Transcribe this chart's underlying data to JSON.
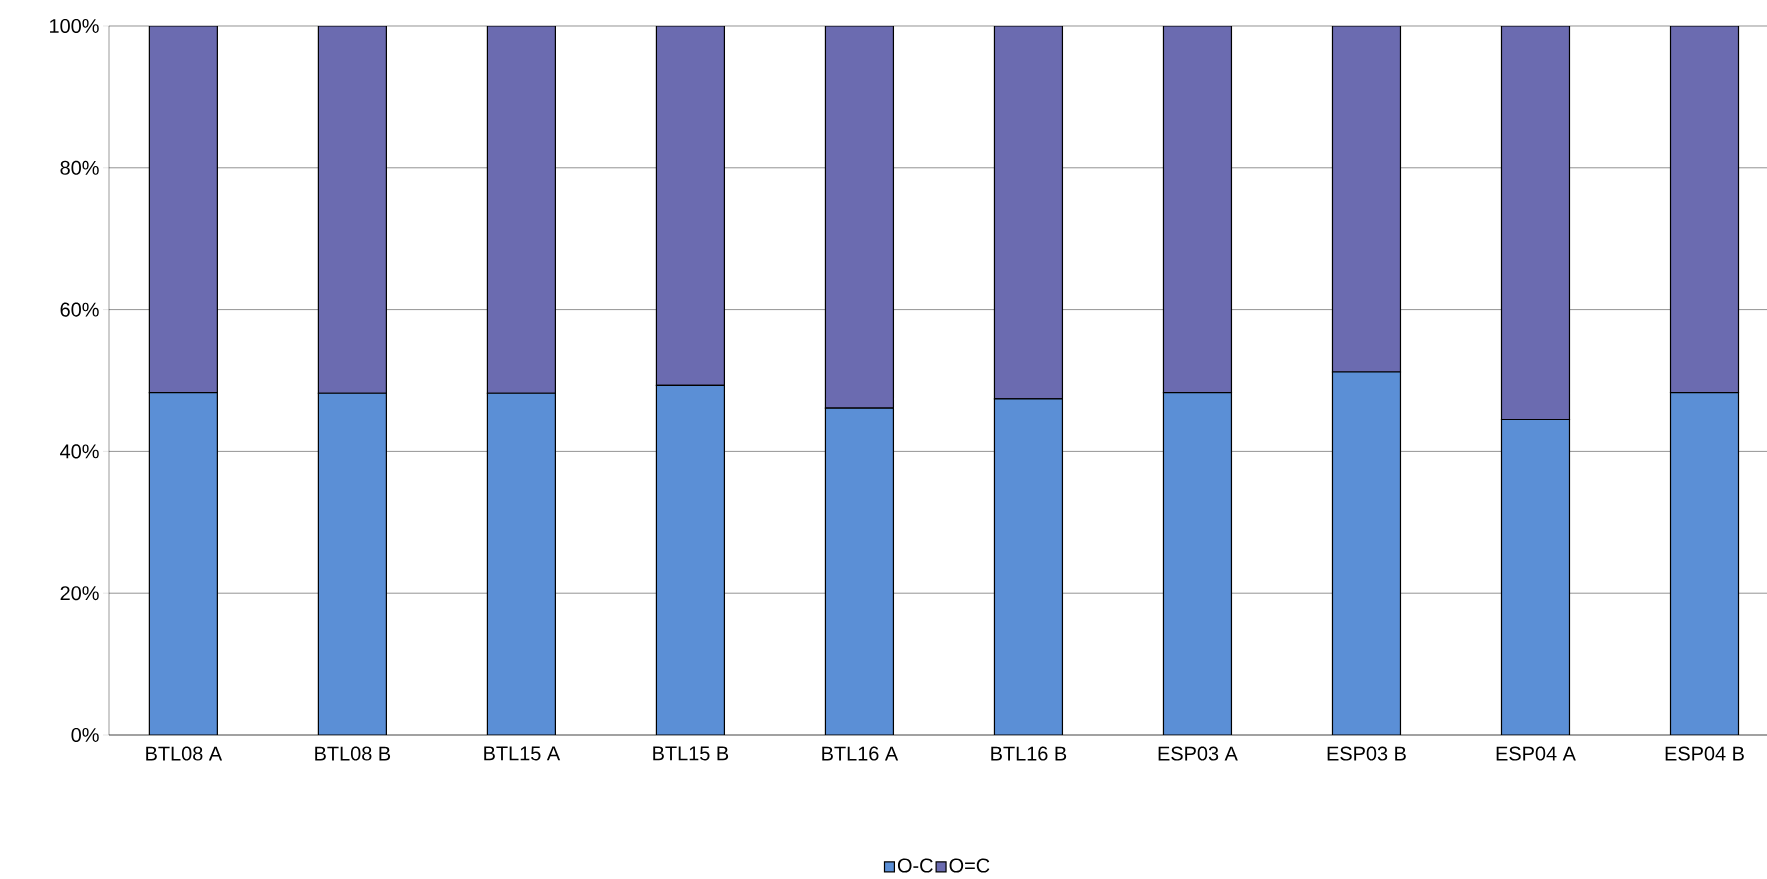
{
  "chart_data": {
    "type": "bar",
    "stacked": true,
    "categories": [
      "BTL08 A",
      "BTL08 B",
      "BTL15 A",
      "BTL15 B",
      "BTL16 A",
      "BTL16 B",
      "ESP03 A",
      "ESP03 B",
      "ESP04 A",
      "ESP04 B"
    ],
    "series": [
      {
        "name": "O-C",
        "color": "#5b8fd6",
        "values": [
          48.3,
          48.2,
          48.2,
          49.3,
          46.1,
          47.4,
          48.3,
          51.2,
          44.5,
          48.3
        ]
      },
      {
        "name": "O=C",
        "color": "#6b6bb0",
        "values": [
          51.7,
          51.8,
          51.8,
          50.7,
          53.9,
          52.6,
          51.7,
          48.8,
          55.5,
          51.7
        ]
      }
    ],
    "ylim": [
      0,
      100
    ],
    "yticks": [
      {
        "value": 0,
        "label": "0%"
      },
      {
        "value": 20,
        "label": "20%"
      },
      {
        "value": 40,
        "label": "40%"
      },
      {
        "value": 60,
        "label": "60%"
      },
      {
        "value": 80,
        "label": "80%"
      },
      {
        "value": 100,
        "label": "100%"
      }
    ],
    "grid": "y",
    "legend": "bottom"
  }
}
